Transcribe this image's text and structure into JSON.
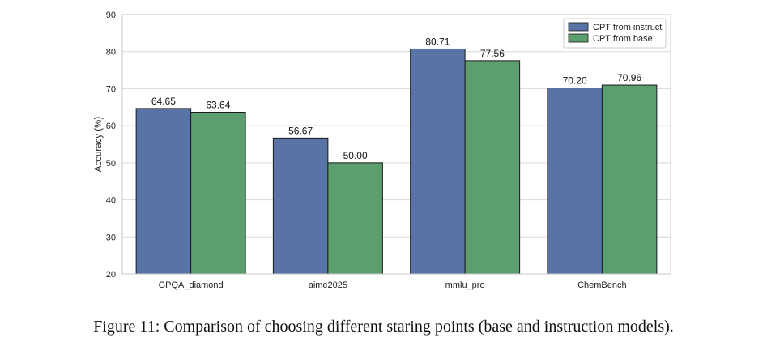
{
  "caption": "Figure 11: Comparison of choosing different staring points (base and instruction models).",
  "chart_data": {
    "type": "bar",
    "categories": [
      "GPQA_diamond",
      "aime2025",
      "mmlu_pro",
      "ChemBench"
    ],
    "series": [
      {
        "name": "CPT from instruct",
        "values": [
          64.65,
          56.67,
          80.71,
          70.2
        ],
        "labels": [
          "64.65",
          "56.67",
          "80.71",
          "70.20"
        ],
        "color": "#5874a6"
      },
      {
        "name": "CPT from base",
        "values": [
          63.64,
          50.0,
          77.56,
          70.96
        ],
        "labels": [
          "63.64",
          "50.00",
          "77.56",
          "70.96"
        ],
        "color": "#5c9e6e"
      }
    ],
    "xlabel": "",
    "ylabel": "Accuracy (%)",
    "ylim": [
      20,
      90
    ],
    "yticks": [
      20,
      30,
      40,
      50,
      60,
      70,
      80,
      90
    ],
    "grid": "horizontal",
    "legend_position": "top-right"
  }
}
